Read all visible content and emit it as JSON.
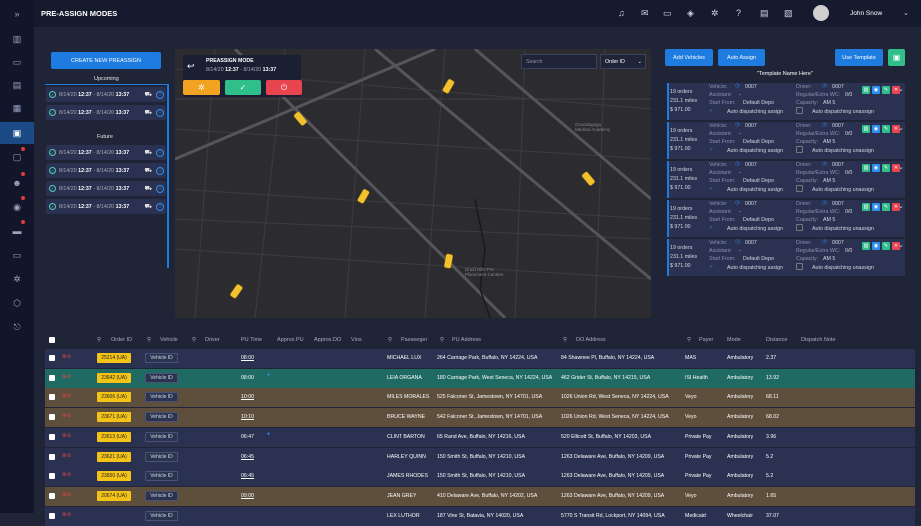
{
  "header": {
    "title": "PRE-ASSIGN MODES",
    "username": "John Snow"
  },
  "left": {
    "create_button": "CREATE NEW PREASSIGN",
    "upcoming_label": "Upcoming",
    "future_label": "Future",
    "upcoming": [
      {
        "d1": "8/14/20",
        "t1": "12:37",
        "d2": "8/14/20",
        "t2": "13:37"
      },
      {
        "d1": "8/14/20",
        "t1": "12:37",
        "d2": "8/14/20",
        "t2": "13:37"
      }
    ],
    "future": [
      {
        "d1": "8/14/20",
        "t1": "12:37",
        "d2": "8/14/20",
        "t2": "13:37"
      },
      {
        "d1": "8/14/20",
        "t1": "12:37",
        "d2": "8/14/20",
        "t2": "13:37"
      },
      {
        "d1": "8/14/20",
        "t1": "12:37",
        "d2": "8/14/20",
        "t2": "13:37"
      },
      {
        "d1": "8/14/20",
        "t1": "12:37",
        "d2": "8/14/20",
        "t2": "13:37"
      }
    ]
  },
  "mode_panel": {
    "title": "PREASSIGN MODE",
    "d1": "8/14/20",
    "t1": "12:37",
    "d2": "8/14/20",
    "t2": "13:37"
  },
  "map": {
    "search_placeholder": "Search",
    "order_select": "Order ID",
    "labels": [
      "Onondagaga Medical Academy",
      "Druid Hills Pre Placement Centers"
    ]
  },
  "right": {
    "add_vehicles": "Add Vehicles",
    "auto_assign": "Auto Assign",
    "use_template": "Use Template",
    "template_name": "\"Template Name Here\"",
    "card": {
      "orders": "19 orders",
      "miles": "231.1 miles",
      "price": "$ 971.00",
      "vehicle_label": "Vehicle:",
      "vehicle": "0007",
      "assistant_label": "Assistant:",
      "assistant": "-",
      "start_label": "Start From:",
      "start": "Default Depo",
      "driver_label": "Driver:",
      "driver": "0007",
      "regular_label": "Regular/Extra WC:",
      "regular": "0/0",
      "capacity_label": "Capacity:",
      "capacity": "AM 5",
      "auto_dispatch": "Auto dispatching assign",
      "auto_unassign": "Auto dispatching unassign"
    },
    "cards_count": 5
  },
  "table": {
    "headers": {
      "order": "Order ID",
      "vehicle": "Vehicle",
      "driver": "Driver",
      "pu_time": "PU Time",
      "approx_pu": "Approx.PU",
      "approx_do": "Approx.DO",
      "vios": "Vios",
      "passenger": "Passeeger",
      "pu": "PU Address",
      "do": "DO Address",
      "payer": "Payer",
      "mode": "Mode",
      "distance": "Distance",
      "note": "Dispatch Note"
    },
    "rows": [
      {
        "id": "25214 (UA)",
        "vehicle": "Vehicle ID",
        "pu_time": "08:00",
        "ul": true,
        "dot": false,
        "passenger": "MICHAEL LUX",
        "pu": "264 Carriage Park, Buffalo, NY 14224, USA",
        "do": "84 Shawnee Pl, Buffalo, NY 14224, USA",
        "payer": "MAS",
        "mode": "Ambulatory",
        "distance": "2.37",
        "bg": "#2b3150"
      },
      {
        "id": "23642 (UA)",
        "vehicle": "Vehicle ID",
        "pu_time": "08:00",
        "ul": false,
        "dot": true,
        "passenger": "LEIA ORGANA",
        "pu": "180 Carriage Park, West Seneca, NY 14224, USA",
        "do": "462 Grider St, Buffalo, NY 14215, USA",
        "payer": "ISI Health",
        "mode": "Ambulatory",
        "distance": "13.92",
        "bg": "#1f6b63"
      },
      {
        "id": "23606 (UA)",
        "vehicle": "Vehicle ID",
        "pu_time": "10:00",
        "ul": true,
        "dot": false,
        "passenger": "MILES MORALES",
        "pu": "525 Falconer St, Jamestown, NY 14701, USA",
        "do": "1026 Union Rd, West Seneca, NY 14224, USA",
        "payer": "Veyo",
        "mode": "Ambulatory",
        "distance": "68.11",
        "bg": "#5e4f3c"
      },
      {
        "id": "23671 (UA)",
        "vehicle": "Vehicle ID",
        "pu_time": "10:10",
        "ul": true,
        "dot": false,
        "passenger": "BRUCE WAYNE",
        "pu": "542 Falconer St, Jamestown, NY 14701, USA",
        "do": "1026 Union Rd, West Seneca, NY 14224, USA",
        "payer": "Veyo",
        "mode": "Ambulatory",
        "distance": "68.02",
        "bg": "#5e4f3c"
      },
      {
        "id": "23613 (UA)",
        "vehicle": "Vehicle ID",
        "pu_time": "06:47",
        "ul": false,
        "dot": true,
        "passenger": "CLINT BARTON",
        "pu": "65 Rand Ave, Buffalo, NY 14216, USA",
        "do": "520 Ellicott St, Buffalo, NY 14203, USA",
        "payer": "Private Pay",
        "mode": "Ambulatory",
        "distance": "3.96",
        "bg": "#2b3150"
      },
      {
        "id": "23621 (UA)",
        "vehicle": "Vehicle ID",
        "pu_time": "06:45",
        "ul": true,
        "dot": false,
        "passenger": "HARLEY QUINN",
        "pu": "150 Smith St, Buffalo, NY 14210, USA",
        "do": "1263 Delaware Ave, Buffalo, NY 14209, USA",
        "payer": "Private Pay",
        "mode": "Ambulatory",
        "distance": "5.2",
        "bg": "#2b3150"
      },
      {
        "id": "23650 (UA)",
        "vehicle": "Vehicle ID",
        "pu_time": "06:45",
        "ul": true,
        "dot": false,
        "passenger": "JAMES RHODES",
        "pu": "150 Smith St, Buffalo, NY 14210, USA",
        "do": "1263 Delaware Ave, Buffalo, NY 14209, USA",
        "payer": "Private Pay",
        "mode": "Ambulatory",
        "distance": "5.2",
        "bg": "#2b3150"
      },
      {
        "id": "20674 (UA)",
        "vehicle": "Vehicle ID",
        "pu_time": "09:00",
        "ul": true,
        "dot": false,
        "passenger": "JEAN GREY",
        "pu": "410 Delaware Ave, Buffalo, NY 14202, USA",
        "do": "1263 Delaware Ave, Buffalo, NY 14209, USA",
        "payer": "Veyo",
        "mode": "Ambulatory",
        "distance": "1.65",
        "bg": "#5e4f3c"
      },
      {
        "id": "",
        "vehicle": "Vehicle ID",
        "pu_time": "",
        "ul": false,
        "dot": false,
        "passenger": "LEX LUTHOR",
        "pu": "187 Vine St, Batavia, NY 14020, USA",
        "do": "5770 S Transit Rd, Lockport, NY 14094, USA",
        "payer": "Medicaid",
        "mode": "Wheelchair",
        "distance": "37.07",
        "bg": "#2b3150"
      }
    ]
  },
  "colors": {
    "accent": "#1e7be0",
    "warning": "#f4c318",
    "confirm": "#2fbf8a",
    "danger": "#e8454f"
  }
}
